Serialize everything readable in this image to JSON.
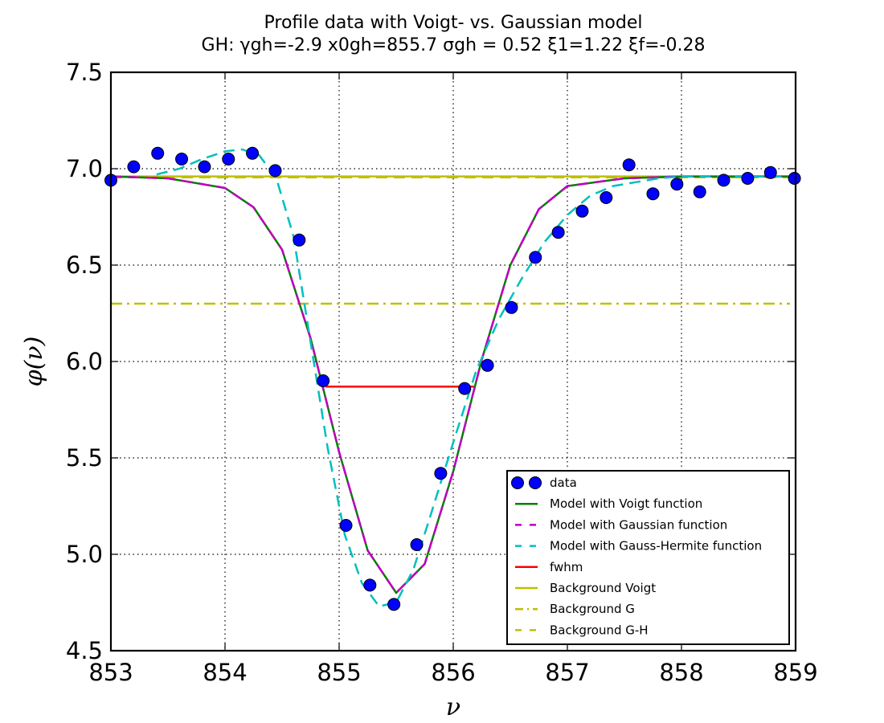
{
  "chart_data": {
    "type": "line",
    "title": "Profile data with Voigt- vs. Gaussian model",
    "subtitle": "GH: γgh=-2.9 x0gh=855.7 σgh = 0.52 ξ1=1.22  ξf=-0.28",
    "xlabel": "ν",
    "ylabel": "φ(ν)",
    "xlim": [
      853,
      859
    ],
    "ylim": [
      4.5,
      7.5
    ],
    "xticks": [
      "853",
      "854",
      "855",
      "856",
      "857",
      "858",
      "859"
    ],
    "yticks": [
      "4.5",
      "5.0",
      "5.5",
      "6.0",
      "6.5",
      "7.0",
      "7.5"
    ],
    "grid": true,
    "legend_position": "lower-right",
    "series": [
      {
        "name": "data",
        "kind": "scatter",
        "color": "#0000ff",
        "x": [
          853.0,
          853.2,
          853.41,
          853.62,
          853.82,
          854.03,
          854.24,
          854.44,
          854.65,
          854.86,
          855.06,
          855.27,
          855.48,
          855.68,
          855.89,
          856.1,
          856.3,
          856.51,
          856.72,
          856.92,
          857.13,
          857.34,
          857.54,
          857.75,
          857.96,
          858.16,
          858.37,
          858.58,
          858.78,
          858.99
        ],
        "y": [
          6.94,
          7.01,
          7.08,
          7.05,
          7.01,
          7.05,
          7.08,
          6.99,
          6.63,
          5.9,
          5.15,
          4.84,
          4.74,
          5.05,
          5.42,
          5.86,
          5.98,
          6.28,
          6.54,
          6.67,
          6.78,
          6.85,
          7.02,
          6.87,
          6.92,
          6.88,
          6.94,
          6.95,
          6.98,
          6.95
        ]
      },
      {
        "name": "Model with Voigt function",
        "kind": "line",
        "color": "#008000",
        "dash": "solid",
        "x": [
          853.0,
          853.5,
          854.0,
          854.25,
          854.5,
          854.75,
          855.0,
          855.25,
          855.5,
          855.75,
          856.0,
          856.25,
          856.5,
          856.75,
          857.0,
          857.5,
          858.0,
          858.5,
          859.0
        ],
        "y": [
          6.96,
          6.95,
          6.9,
          6.8,
          6.58,
          6.12,
          5.53,
          5.02,
          4.8,
          4.95,
          5.43,
          6.01,
          6.5,
          6.79,
          6.91,
          6.95,
          6.96,
          6.96,
          6.96
        ]
      },
      {
        "name": "Model with Gaussian function",
        "kind": "line",
        "color": "#bf00bf",
        "dash": "dashed",
        "x": [
          853.0,
          853.5,
          854.0,
          854.25,
          854.5,
          854.75,
          855.0,
          855.25,
          855.5,
          855.75,
          856.0,
          856.25,
          856.5,
          856.75,
          857.0,
          857.5,
          858.0,
          858.5,
          859.0
        ],
        "y": [
          6.96,
          6.95,
          6.9,
          6.8,
          6.58,
          6.12,
          5.53,
          5.02,
          4.8,
          4.95,
          5.43,
          6.01,
          6.5,
          6.79,
          6.91,
          6.95,
          6.96,
          6.96,
          6.96
        ]
      },
      {
        "name": "Model with Gauss-Hermite function",
        "kind": "line",
        "color": "#00bfbf",
        "dash": "dashed",
        "x": [
          853.4,
          853.6,
          853.8,
          854.0,
          854.15,
          854.3,
          854.45,
          854.6,
          854.75,
          854.9,
          855.05,
          855.2,
          855.35,
          855.5,
          855.65,
          855.8,
          856.0,
          856.2,
          856.4,
          856.6,
          856.8,
          857.0,
          857.2,
          857.4,
          857.6,
          857.8,
          858.0,
          858.5,
          859.0
        ],
        "y": [
          6.97,
          7.0,
          7.05,
          7.09,
          7.1,
          7.07,
          6.95,
          6.65,
          6.1,
          5.55,
          5.1,
          4.85,
          4.73,
          4.75,
          4.92,
          5.2,
          5.58,
          5.95,
          6.22,
          6.43,
          6.62,
          6.76,
          6.86,
          6.91,
          6.93,
          6.95,
          6.96,
          6.96,
          6.96
        ]
      },
      {
        "name": "fwhm",
        "kind": "line",
        "color": "#ff0000",
        "dash": "solid",
        "x": [
          854.88,
          856.18
        ],
        "y": [
          5.87,
          5.87
        ]
      },
      {
        "name": "Background Voigt",
        "kind": "line",
        "color": "#bfbf00",
        "dash": "solid",
        "x": [
          853.0,
          859.0
        ],
        "y": [
          6.96,
          6.96
        ]
      },
      {
        "name": "Background G",
        "kind": "line",
        "color": "#bfbf00",
        "dash": "dashdot",
        "x": [
          853.0,
          858.95
        ],
        "y": [
          6.3,
          6.3
        ]
      },
      {
        "name": "Background G-H",
        "kind": "line",
        "color": "#bfbf00",
        "dash": "dashed",
        "x": [
          853.0,
          859.0
        ],
        "y": [
          6.955,
          6.955
        ]
      }
    ]
  }
}
